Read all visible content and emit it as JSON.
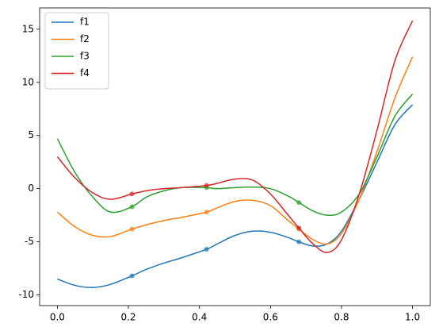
{
  "chart_data": {
    "type": "line",
    "x": [
      0,
      0.05,
      0.1,
      0.15,
      0.21,
      0.25,
      0.3,
      0.35,
      0.42,
      0.45,
      0.5,
      0.55,
      0.6,
      0.65,
      0.68,
      0.72,
      0.76,
      0.8,
      0.85,
      0.9,
      0.95,
      1.0
    ],
    "series": [
      {
        "name": "f1",
        "color": "#1f77b4",
        "values": [
          -8.5,
          -9.1,
          -9.3,
          -9.0,
          -8.2,
          -7.6,
          -7.0,
          -6.5,
          -5.7,
          -5.2,
          -4.4,
          -4.0,
          -4.1,
          -4.6,
          -5.0,
          -5.4,
          -5.2,
          -4.0,
          -1.0,
          2.5,
          6.0,
          7.9
        ],
        "marker_values": [
          -8.2,
          -5.7,
          -5.0
        ]
      },
      {
        "name": "f2",
        "color": "#ff7f0e",
        "values": [
          -2.2,
          -3.6,
          -4.4,
          -4.5,
          -3.8,
          -3.4,
          -3.0,
          -2.7,
          -2.2,
          -1.8,
          -1.2,
          -1.1,
          -1.6,
          -3.0,
          -3.8,
          -4.8,
          -5.2,
          -4.2,
          -1.0,
          3.5,
          8.5,
          12.4
        ],
        "marker_values": [
          -3.8,
          -2.2,
          -3.8
        ]
      },
      {
        "name": "f3",
        "color": "#2ca02c",
        "values": [
          4.7,
          1.5,
          -0.8,
          -2.2,
          -1.7,
          -0.8,
          -0.2,
          0.1,
          0.1,
          0.0,
          0.1,
          0.15,
          0.0,
          -0.7,
          -1.3,
          -2.1,
          -2.5,
          -2.2,
          -0.5,
          3.0,
          6.8,
          8.9
        ],
        "marker_values": [
          -1.7,
          0.1,
          -1.3
        ]
      },
      {
        "name": "f4",
        "color": "#d62728",
        "values": [
          3.0,
          1.0,
          -0.4,
          -1.0,
          -0.5,
          -0.2,
          0.0,
          0.1,
          0.3,
          0.5,
          0.9,
          0.8,
          -0.5,
          -2.5,
          -3.7,
          -5.2,
          -6.0,
          -4.8,
          -0.5,
          5.5,
          12.0,
          15.8
        ],
        "marker_values": [
          -0.5,
          0.3,
          -3.7
        ]
      }
    ],
    "marker_x": [
      0.21,
      0.42,
      0.68
    ],
    "xlim": [
      -0.05,
      1.05
    ],
    "ylim": [
      -11,
      17
    ],
    "xticks": [
      {
        "value": 0,
        "label": "0.0"
      },
      {
        "value": 0.2,
        "label": "0.2"
      },
      {
        "value": 0.4,
        "label": "0.4"
      },
      {
        "value": 0.6,
        "label": "0.6"
      },
      {
        "value": 0.8,
        "label": "0.8"
      },
      {
        "value": 1.0,
        "label": "1.0"
      }
    ],
    "yticks": [
      -10,
      -5,
      0,
      5,
      10,
      15
    ],
    "legend": "upper left",
    "grid": false
  }
}
